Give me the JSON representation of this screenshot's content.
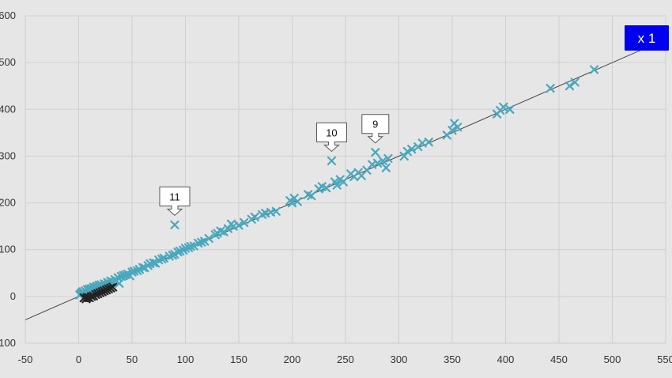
{
  "colors": {
    "background": "#e6e6e6",
    "grid": "#cfcfcf",
    "marker": "#4aa8bd",
    "marker_dark": "#222222",
    "fit_line": "#444444",
    "badge_bg": "#0000ee",
    "badge_text": "#ffffff"
  },
  "badge": {
    "label": "x 1"
  },
  "chart_data": {
    "type": "scatter",
    "title": "",
    "xlabel": "",
    "ylabel": "",
    "grid": true,
    "xlim": [
      -50,
      550
    ],
    "ylim": [
      -100,
      600
    ],
    "xticks": [
      -50,
      0,
      50,
      100,
      150,
      200,
      250,
      300,
      350,
      400,
      450,
      500,
      550
    ],
    "yticks": [
      -100,
      0,
      100,
      200,
      300,
      400,
      500,
      600
    ],
    "fit_line": {
      "slope": 1.0,
      "intercept": 0
    },
    "series": [
      {
        "marker": "x",
        "color": "#4aa8bd",
        "points": [
          [
            1,
            3
          ],
          [
            2,
            6
          ],
          [
            3,
            8
          ],
          [
            4,
            10
          ],
          [
            5,
            7
          ],
          [
            6,
            12
          ],
          [
            7,
            10
          ],
          [
            8,
            15
          ],
          [
            9,
            13
          ],
          [
            10,
            16
          ],
          [
            11,
            14
          ],
          [
            12,
            17
          ],
          [
            13,
            16
          ],
          [
            14,
            20
          ],
          [
            15,
            18
          ],
          [
            16,
            19
          ],
          [
            17,
            22
          ],
          [
            18,
            20
          ],
          [
            19,
            24
          ],
          [
            20,
            21
          ],
          [
            21,
            25
          ],
          [
            22,
            23
          ],
          [
            24,
            27
          ],
          [
            25,
            26
          ],
          [
            27,
            30
          ],
          [
            28,
            29
          ],
          [
            30,
            33
          ],
          [
            32,
            31
          ],
          [
            34,
            36
          ],
          [
            35,
            34
          ],
          [
            37,
            40
          ],
          [
            38,
            28
          ],
          [
            40,
            43
          ],
          [
            42,
            45
          ],
          [
            44,
            46
          ],
          [
            46,
            48
          ],
          [
            48,
            44
          ],
          [
            50,
            52
          ],
          [
            52,
            54
          ],
          [
            55,
            55
          ],
          [
            57,
            58
          ],
          [
            60,
            62
          ],
          [
            62,
            61
          ],
          [
            65,
            66
          ],
          [
            67,
            70
          ],
          [
            70,
            72
          ],
          [
            72,
            71
          ],
          [
            75,
            78
          ],
          [
            78,
            80
          ],
          [
            80,
            82
          ],
          [
            85,
            86
          ],
          [
            88,
            88
          ],
          [
            90,
            90
          ],
          [
            93,
            95
          ],
          [
            95,
            97
          ],
          [
            98,
            99
          ],
          [
            100,
            103
          ],
          [
            103,
            104
          ],
          [
            105,
            107
          ],
          [
            108,
            108
          ],
          [
            112,
            114
          ],
          [
            115,
            116
          ],
          [
            118,
            118
          ],
          [
            122,
            124
          ],
          [
            128,
            132
          ],
          [
            130,
            135
          ],
          [
            133,
            140
          ],
          [
            136,
            138
          ],
          [
            140,
            145
          ],
          [
            143,
            155
          ],
          [
            145,
            150
          ],
          [
            150,
            152
          ],
          [
            155,
            158
          ],
          [
            162,
            165
          ],
          [
            165,
            170
          ],
          [
            172,
            175
          ],
          [
            175,
            178
          ],
          [
            180,
            180
          ],
          [
            185,
            182
          ],
          [
            198,
            205
          ],
          [
            200,
            200
          ],
          [
            202,
            210
          ],
          [
            205,
            203
          ],
          [
            215,
            218
          ],
          [
            218,
            215
          ],
          [
            225,
            230
          ],
          [
            228,
            235
          ],
          [
            232,
            232
          ],
          [
            240,
            245
          ],
          [
            242,
            238
          ],
          [
            245,
            250
          ],
          [
            248,
            245
          ],
          [
            255,
            262
          ],
          [
            258,
            256
          ],
          [
            262,
            265
          ],
          [
            265,
            258
          ],
          [
            270,
            270
          ],
          [
            275,
            282
          ],
          [
            280,
            285
          ],
          [
            285,
            290
          ],
          [
            288,
            275
          ],
          [
            290,
            295
          ],
          [
            305,
            300
          ],
          [
            308,
            310
          ],
          [
            312,
            315
          ],
          [
            318,
            320
          ],
          [
            322,
            328
          ],
          [
            328,
            330
          ],
          [
            345,
            345
          ],
          [
            350,
            355
          ],
          [
            352,
            370
          ],
          [
            355,
            362
          ],
          [
            392,
            390
          ],
          [
            395,
            398
          ],
          [
            398,
            405
          ],
          [
            404,
            400
          ],
          [
            442,
            445
          ],
          [
            460,
            450
          ],
          [
            465,
            458
          ],
          [
            483,
            485
          ],
          [
            90,
            153
          ],
          [
            237,
            290
          ],
          [
            278,
            308
          ]
        ]
      },
      {
        "marker": "x",
        "color": "#222222",
        "points": [
          [
            5,
            -3
          ],
          [
            7,
            -5
          ],
          [
            8,
            -2
          ],
          [
            10,
            -3
          ],
          [
            12,
            0
          ],
          [
            14,
            1
          ],
          [
            16,
            4
          ],
          [
            18,
            6
          ],
          [
            20,
            8
          ],
          [
            22,
            10
          ],
          [
            24,
            12
          ],
          [
            26,
            14
          ],
          [
            28,
            16
          ],
          [
            30,
            18
          ],
          [
            32,
            20
          ]
        ]
      }
    ],
    "annotations": [
      {
        "label": "11",
        "x": 90,
        "y": 153
      },
      {
        "label": "10",
        "x": 237,
        "y": 290
      },
      {
        "label": "9",
        "x": 278,
        "y": 308
      }
    ]
  }
}
